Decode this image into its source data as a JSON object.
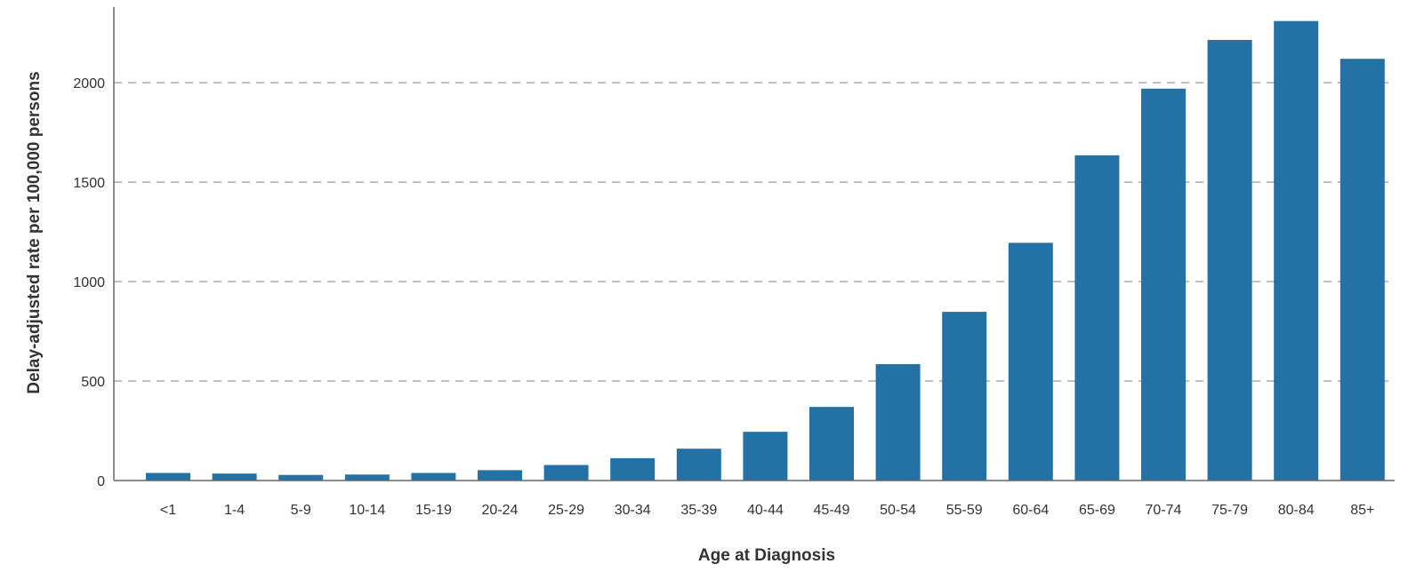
{
  "chart_data": {
    "type": "bar",
    "xlabel": "Age at Diagnosis",
    "ylabel": "Delay-adjusted rate per 100,000 persons",
    "categories": [
      "<1",
      "1-4",
      "5-9",
      "10-14",
      "15-19",
      "20-24",
      "25-29",
      "30-34",
      "35-39",
      "40-44",
      "45-49",
      "50-54",
      "55-59",
      "60-64",
      "65-69",
      "70-74",
      "75-79",
      "80-84",
      "85+"
    ],
    "values": [
      38,
      35,
      28,
      30,
      38,
      52,
      78,
      112,
      160,
      245,
      370,
      585,
      848,
      1195,
      1635,
      1970,
      2215,
      2310,
      2120
    ],
    "yticks": [
      0,
      500,
      1000,
      1500,
      2000
    ],
    "ylim": [
      0,
      2380
    ],
    "grid": "horizontal-dashed",
    "bar_color": "#2471a6",
    "grid_color": "#aaaaaa",
    "axis_color": "#666666",
    "text_color": "#333333"
  }
}
